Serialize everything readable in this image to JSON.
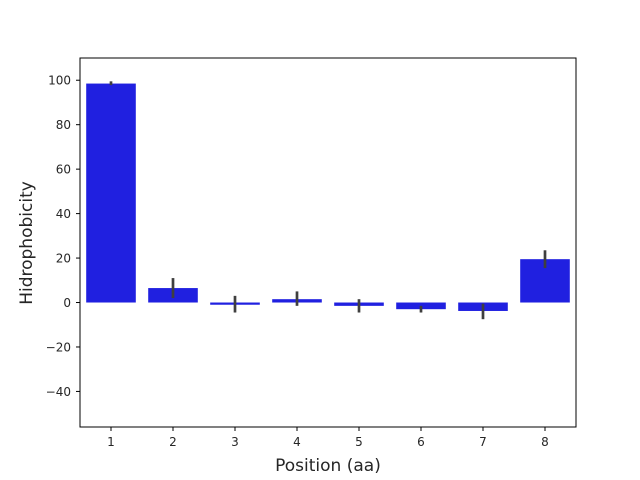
{
  "chart_data": {
    "type": "bar",
    "title": "",
    "xlabel": "Position (aa)",
    "ylabel": "Hidrophobicity",
    "categories": [
      "1",
      "2",
      "3",
      "4",
      "5",
      "6",
      "7",
      "8"
    ],
    "values": [
      98.5,
      6.5,
      -1.0,
      1.5,
      -1.5,
      -3.0,
      -3.8,
      19.5
    ],
    "error_low": [
      97.8,
      2.0,
      -4.5,
      -1.5,
      -4.5,
      -4.5,
      -7.5,
      15.5
    ],
    "error_high": [
      99.5,
      11.0,
      3.0,
      5.0,
      1.5,
      -1.5,
      -0.5,
      23.5
    ],
    "ylim": [
      -56,
      110
    ],
    "yticks": [
      -40,
      -20,
      0,
      20,
      40,
      60,
      80,
      100
    ],
    "ytick_labels": [
      "−40",
      "−20",
      "0",
      "20",
      "40",
      "60",
      "80",
      "100"
    ],
    "grid": false,
    "bar_color": "#2020e0",
    "errorbar_color": "#3f3f3f"
  }
}
